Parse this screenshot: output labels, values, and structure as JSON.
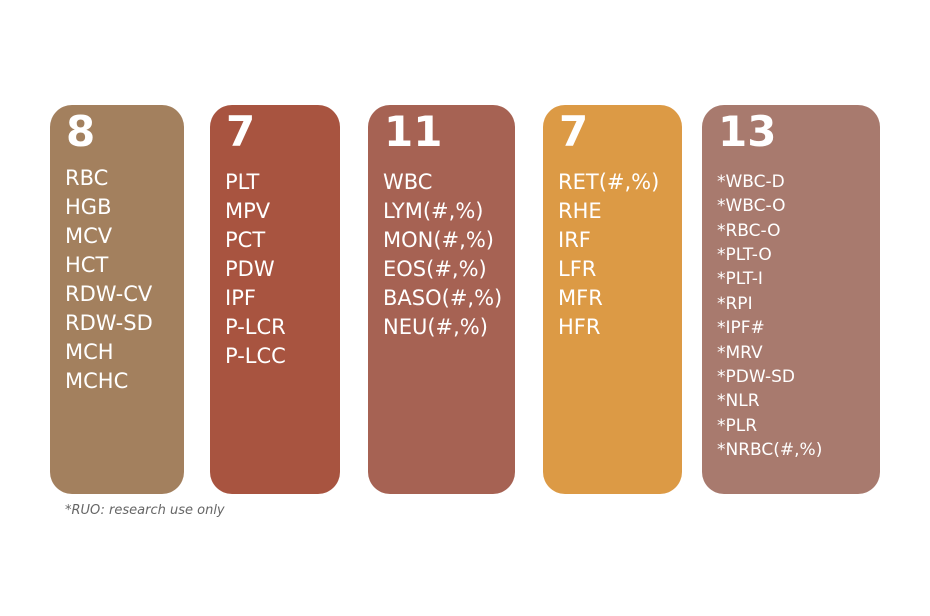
{
  "cards": [
    {
      "count": 8,
      "color": "#a3805e",
      "items": [
        "RBC",
        "HGB",
        "MCV",
        "HCT",
        "RDW-CV",
        "RDW-SD",
        "MCH",
        "MCHC"
      ]
    },
    {
      "count": 7,
      "color": "#a85440",
      "items": [
        "PLT",
        "MPV",
        "PCT",
        "PDW",
        "IPF",
        "P-LCR",
        "P-LCC"
      ]
    },
    {
      "count": 11,
      "color": "#a66253",
      "items": [
        "WBC",
        "LYM(#,%)",
        "MON(#,%)",
        "EOS(#,%)",
        "BASO(#,%)",
        "NEU(#,%)"
      ]
    },
    {
      "count": 7,
      "color": "#dc9a45",
      "items": [
        "RET(#,%)",
        "RHE",
        "IRF",
        "LFR",
        "MFR",
        "HFR"
      ]
    },
    {
      "count": 13,
      "color": "#a87a6e",
      "items": [
        "*WBC-D",
        "*WBC-O",
        "*RBC-O",
        "*PLT-O",
        "*PLT-I",
        "*RPI",
        "*IPF#",
        "*MRV",
        "*PDW-SD",
        "*NLR",
        "*PLR",
        "*NRBC(#,%)"
      ]
    }
  ],
  "footnote": "*RUO: research use only"
}
